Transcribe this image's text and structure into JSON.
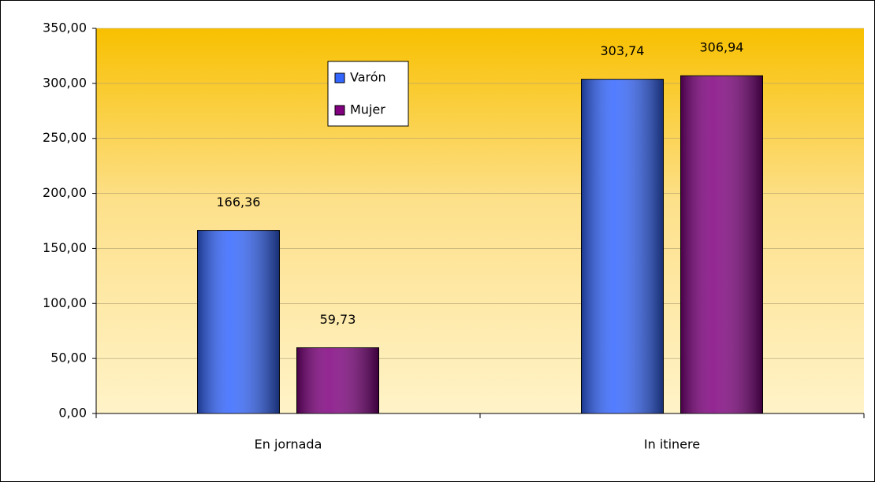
{
  "chart_data": {
    "type": "bar",
    "categories": [
      "En jornada",
      "In itinere"
    ],
    "series": [
      {
        "name": "Varón",
        "color": "#3366ff",
        "values": [
          166.36,
          303.74
        ],
        "value_labels": [
          "166,36",
          "303,74"
        ]
      },
      {
        "name": "Mujer",
        "color": "#800080",
        "values": [
          59.73,
          306.94
        ],
        "value_labels": [
          "59,73",
          "306,94"
        ]
      }
    ],
    "ylim": [
      0,
      350
    ],
    "yticks": [
      {
        "value": 0,
        "label": "0,00"
      },
      {
        "value": 50,
        "label": "50,00"
      },
      {
        "value": 100,
        "label": "100,00"
      },
      {
        "value": 150,
        "label": "150,00"
      },
      {
        "value": 200,
        "label": "200,00"
      },
      {
        "value": 250,
        "label": "250,00"
      },
      {
        "value": 300,
        "label": "300,00"
      },
      {
        "value": 350,
        "label": "350,00"
      }
    ],
    "grid": true
  }
}
